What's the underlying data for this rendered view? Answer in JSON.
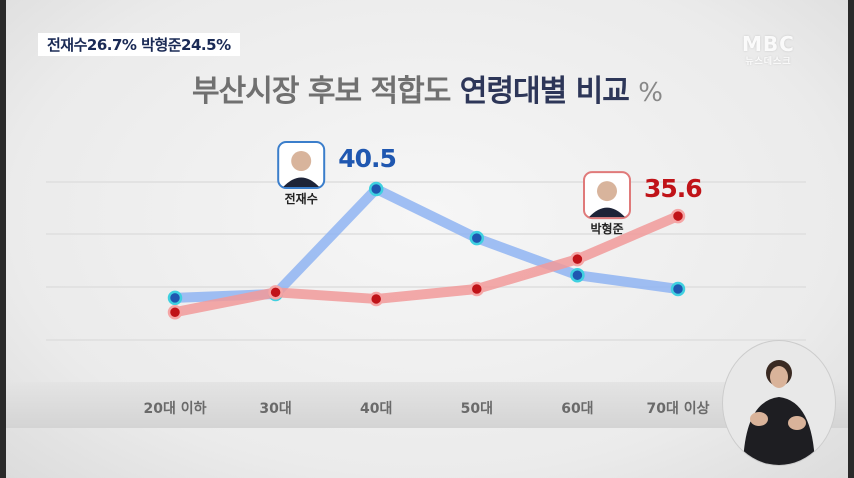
{
  "caption": "전재수26.7% 박형준24.5%",
  "logo": {
    "top": "MBC",
    "bottom": "뉴스데스크"
  },
  "title": {
    "part1": "부산시장 후보 적합도",
    "part2": "연령대별 비교",
    "unit": "%"
  },
  "chart_data": {
    "type": "line",
    "title": "부산시장 후보 적합도 연령대별 비교",
    "unit": "%",
    "categories": [
      "20대 이하",
      "30대",
      "40대",
      "50대",
      "60대",
      "70대 이상"
    ],
    "series": [
      {
        "name": "전재수",
        "color": "#1f57b0",
        "line_color": "#8fb4f2",
        "values": [
          20.8,
          21.5,
          40.5,
          31.6,
          24.9,
          22.4
        ],
        "labeled": {
          "index": 2,
          "label": "40.5"
        }
      },
      {
        "name": "박형준",
        "color": "#c01318",
        "line_color": "#f19a9a",
        "values": [
          18.2,
          21.8,
          20.6,
          22.4,
          27.8,
          35.6
        ],
        "labeled": {
          "index": 5,
          "label": "35.6"
        }
      }
    ],
    "grid": true
  }
}
